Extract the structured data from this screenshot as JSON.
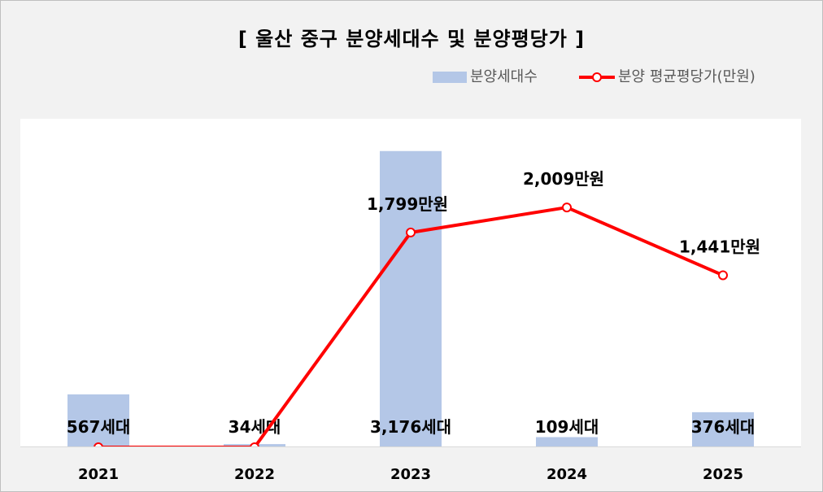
{
  "chart_data": {
    "type": "bar+line",
    "title": "[ 울산 중구 분양세대수 및 분양평당가 ]",
    "categories": [
      "2021",
      "2022",
      "2023",
      "2024",
      "2025"
    ],
    "series": [
      {
        "name": "분양세대수",
        "type": "bar",
        "values": [
          567,
          34,
          3176,
          109,
          376
        ],
        "labels": [
          "567세대",
          "34세대",
          "3,176세대",
          "109세대",
          "376세대"
        ],
        "color": "#b4c7e7"
      },
      {
        "name": "분양 평균평당가(만원)",
        "type": "line",
        "values": [
          0,
          0,
          1799,
          2009,
          1441
        ],
        "labels": [
          "",
          "",
          "1,799만원",
          "2,009만원",
          "1,441만원"
        ],
        "color": "#ff0000"
      }
    ],
    "bar_axis_max": 3200,
    "line_axis_range": [
      0,
      2500
    ],
    "legend_position": "top-right",
    "grid": false
  }
}
